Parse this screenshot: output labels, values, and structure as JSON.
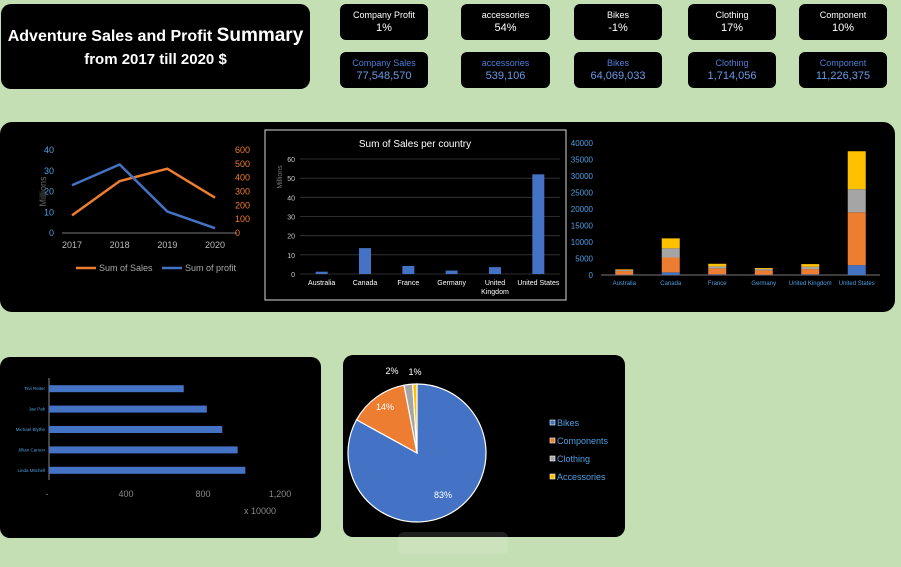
{
  "header": {
    "title_line1_a": "Adventure Sales and Profit",
    "title_line1_b": "Summary",
    "title_line2": "from 2017 till 2020 $"
  },
  "kpis_top": [
    {
      "label": "Company Profit",
      "value": "1%"
    },
    {
      "label": "accessories",
      "value": "54%"
    },
    {
      "label": "Bikes",
      "value": "-1%"
    },
    {
      "label": "Clothing",
      "value": "17%"
    },
    {
      "label": "Component",
      "value": "10%"
    }
  ],
  "kpis_bottom": [
    {
      "label": "Company Sales",
      "value": "77,548,570"
    },
    {
      "label": "accessories",
      "value": "539,106"
    },
    {
      "label": "Bikes",
      "value": "64,069,033"
    },
    {
      "label": "Clothing",
      "value": "1,714,056"
    },
    {
      "label": "Component",
      "value": "11,226,375"
    }
  ],
  "colors": {
    "orange": "#ed7d31",
    "blue": "#4472c4",
    "gray": "#a5a5a5",
    "yellow": "#ffc000",
    "axis_blue": "#4f9fe0"
  },
  "chart_data": [
    {
      "type": "line",
      "x": [
        "2017",
        "2018",
        "2019",
        "2020"
      ],
      "y_left_label": "Millions",
      "y_left_ticks": [
        "0",
        "10",
        "20",
        "30",
        "40"
      ],
      "y_right_ticks": [
        "0",
        "100",
        "200",
        "300",
        "400",
        "500",
        "600"
      ],
      "series": [
        {
          "name": "Sum of Sales",
          "axis": "left",
          "values": [
            8.5,
            25,
            31,
            17
          ]
        },
        {
          "name": "Sum of profit",
          "axis": "right",
          "values": [
            345,
            495,
            155,
            35
          ]
        }
      ]
    },
    {
      "type": "bar",
      "title": "Sum of Sales per country",
      "ylabel": "Millions",
      "ylim": [
        0,
        60
      ],
      "y_ticks": [
        "0",
        "10",
        "20",
        "30",
        "40",
        "50",
        "60"
      ],
      "categories": [
        "Australia",
        "Canada",
        "France",
        "Germany",
        "United Kingdom",
        "United States"
      ],
      "category_lines": [
        [
          "Australia"
        ],
        [
          "Canada"
        ],
        [
          "France"
        ],
        [
          "Germany"
        ],
        [
          "United",
          "Kingdom"
        ],
        [
          "United States"
        ]
      ],
      "values": [
        1.2,
        13.5,
        4.2,
        1.8,
        3.6,
        52
      ]
    },
    {
      "type": "bar",
      "stacked": true,
      "ylim": [
        0,
        40000
      ],
      "y_ticks": [
        "0",
        "5000",
        "10000",
        "15000",
        "20000",
        "25000",
        "30000",
        "35000",
        "40000"
      ],
      "categories": [
        "Australia",
        "Canada",
        "France",
        "Germany",
        "United Kingdom",
        "United States"
      ],
      "series": [
        {
          "color": "blue",
          "values": [
            100,
            800,
            200,
            100,
            200,
            3000
          ]
        },
        {
          "color": "orange",
          "values": [
            1100,
            4500,
            1800,
            1300,
            1600,
            16000
          ]
        },
        {
          "color": "gray",
          "values": [
            300,
            2800,
            600,
            400,
            700,
            7000
          ]
        },
        {
          "color": "yellow",
          "values": [
            200,
            3000,
            800,
            300,
            800,
            11500
          ]
        }
      ]
    },
    {
      "type": "bar",
      "orientation": "horizontal",
      "categories": [
        "Tsvi Reiter",
        "Jae Pak",
        "Michael Blythe",
        "Jillian Carson",
        "Linda Mitchell"
      ],
      "values": [
        700,
        820,
        900,
        980,
        1020
      ],
      "xlim": [
        0,
        1200
      ],
      "x_ticks": [
        "-",
        "400",
        "800",
        "1,200"
      ],
      "x_unit": "x 10000"
    },
    {
      "type": "pie",
      "slices": [
        {
          "name": "Bikes",
          "value": 83,
          "label": "83%",
          "color": "blue"
        },
        {
          "name": "Components",
          "value": 14,
          "label": "14%",
          "color": "orange"
        },
        {
          "name": "Clothing",
          "value": 2,
          "label": "2%",
          "color": "gray"
        },
        {
          "name": "Accessories",
          "value": 1,
          "label": "1%",
          "color": "yellow"
        }
      ]
    }
  ]
}
